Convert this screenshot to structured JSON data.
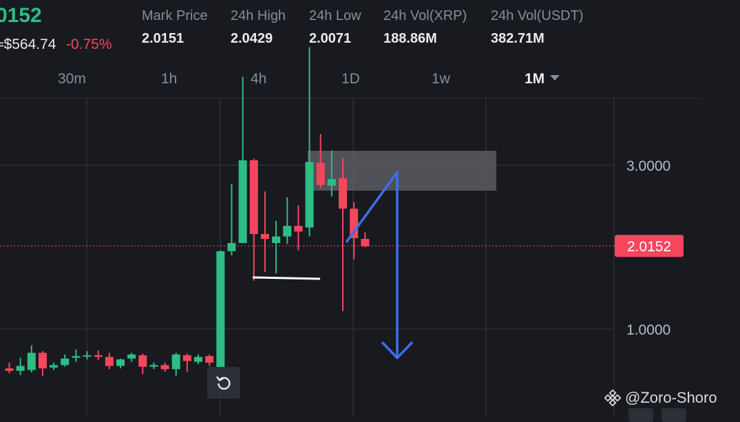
{
  "ticker": {
    "last_price": "0152",
    "fiat_price": "≈$564.74",
    "change_pct": "-0.75%"
  },
  "stats": [
    {
      "label": "Mark Price",
      "value": "2.0151"
    },
    {
      "label": "24h High",
      "value": "2.0429"
    },
    {
      "label": "24h Low",
      "value": "2.0071"
    },
    {
      "label": "24h Vol(XRP)",
      "value": "188.86M"
    },
    {
      "label": "24h Vol(USDT)",
      "value": "382.71M"
    }
  ],
  "intervals": [
    {
      "label": "30m",
      "active": false
    },
    {
      "label": "1h",
      "active": false
    },
    {
      "label": "4h",
      "active": false
    },
    {
      "label": "1D",
      "active": false
    },
    {
      "label": "1w",
      "active": false
    },
    {
      "label": "1M",
      "active": true
    }
  ],
  "watermark": "@Zoro-Shoro",
  "colors": {
    "up": "#2ebd85",
    "down": "#f6465d",
    "grid": "#2b2f36",
    "zone": "#5a5d63",
    "annotation_arrow": "#3d6ef2",
    "background": "#181a20"
  },
  "chart_data": {
    "type": "candlestick",
    "yticks": [
      "1.0000",
      "3.0000"
    ],
    "ylim": [
      0.3,
      4.7
    ],
    "current_price": 2.0152,
    "current_price_label": "2.0152",
    "candles": [
      {
        "o": 0.52,
        "h": 0.59,
        "l": 0.46,
        "c": 0.49
      },
      {
        "o": 0.49,
        "h": 0.65,
        "l": 0.44,
        "c": 0.55
      },
      {
        "o": 0.5,
        "h": 0.8,
        "l": 0.47,
        "c": 0.71
      },
      {
        "o": 0.71,
        "h": 0.73,
        "l": 0.43,
        "c": 0.52
      },
      {
        "o": 0.53,
        "h": 0.59,
        "l": 0.5,
        "c": 0.56
      },
      {
        "o": 0.56,
        "h": 0.69,
        "l": 0.54,
        "c": 0.64
      },
      {
        "o": 0.65,
        "h": 0.75,
        "l": 0.6,
        "c": 0.67
      },
      {
        "o": 0.67,
        "h": 0.73,
        "l": 0.63,
        "c": 0.68
      },
      {
        "o": 0.68,
        "h": 0.74,
        "l": 0.62,
        "c": 0.66
      },
      {
        "o": 0.66,
        "h": 0.71,
        "l": 0.51,
        "c": 0.55
      },
      {
        "o": 0.55,
        "h": 0.64,
        "l": 0.52,
        "c": 0.63
      },
      {
        "o": 0.64,
        "h": 0.71,
        "l": 0.6,
        "c": 0.69
      },
      {
        "o": 0.68,
        "h": 0.7,
        "l": 0.45,
        "c": 0.54
      },
      {
        "o": 0.54,
        "h": 0.59,
        "l": 0.51,
        "c": 0.56
      },
      {
        "o": 0.56,
        "h": 0.59,
        "l": 0.48,
        "c": 0.51
      },
      {
        "o": 0.51,
        "h": 0.71,
        "l": 0.43,
        "c": 0.69
      },
      {
        "o": 0.68,
        "h": 0.7,
        "l": 0.48,
        "c": 0.61
      },
      {
        "o": 0.6,
        "h": 0.69,
        "l": 0.57,
        "c": 0.66
      },
      {
        "o": 0.67,
        "h": 0.69,
        "l": 0.55,
        "c": 0.59
      },
      {
        "o": 0.53,
        "h": 1.96,
        "l": 0.52,
        "c": 1.95
      },
      {
        "o": 1.95,
        "h": 2.77,
        "l": 1.9,
        "c": 2.05
      },
      {
        "o": 2.05,
        "h": 4.08,
        "l": 2.05,
        "c": 3.06
      },
      {
        "o": 3.06,
        "h": 3.08,
        "l": 1.59,
        "c": 2.16
      },
      {
        "o": 2.16,
        "h": 2.68,
        "l": 1.7,
        "c": 2.1
      },
      {
        "o": 2.05,
        "h": 2.32,
        "l": 1.68,
        "c": 2.13
      },
      {
        "o": 2.13,
        "h": 2.61,
        "l": 2.04,
        "c": 2.26
      },
      {
        "o": 2.26,
        "h": 2.51,
        "l": 1.96,
        "c": 2.19
      },
      {
        "o": 2.24,
        "h": 4.44,
        "l": 2.13,
        "c": 3.04
      },
      {
        "o": 3.03,
        "h": 3.38,
        "l": 2.72,
        "c": 2.76
      },
      {
        "o": 2.75,
        "h": 3.18,
        "l": 2.62,
        "c": 2.83
      },
      {
        "o": 2.84,
        "h": 3.09,
        "l": 1.22,
        "c": 2.47
      },
      {
        "o": 2.47,
        "h": 2.55,
        "l": 1.85,
        "c": 2.11
      },
      {
        "o": 2.1,
        "h": 2.18,
        "l": 2.0,
        "c": 2.01
      }
    ]
  }
}
